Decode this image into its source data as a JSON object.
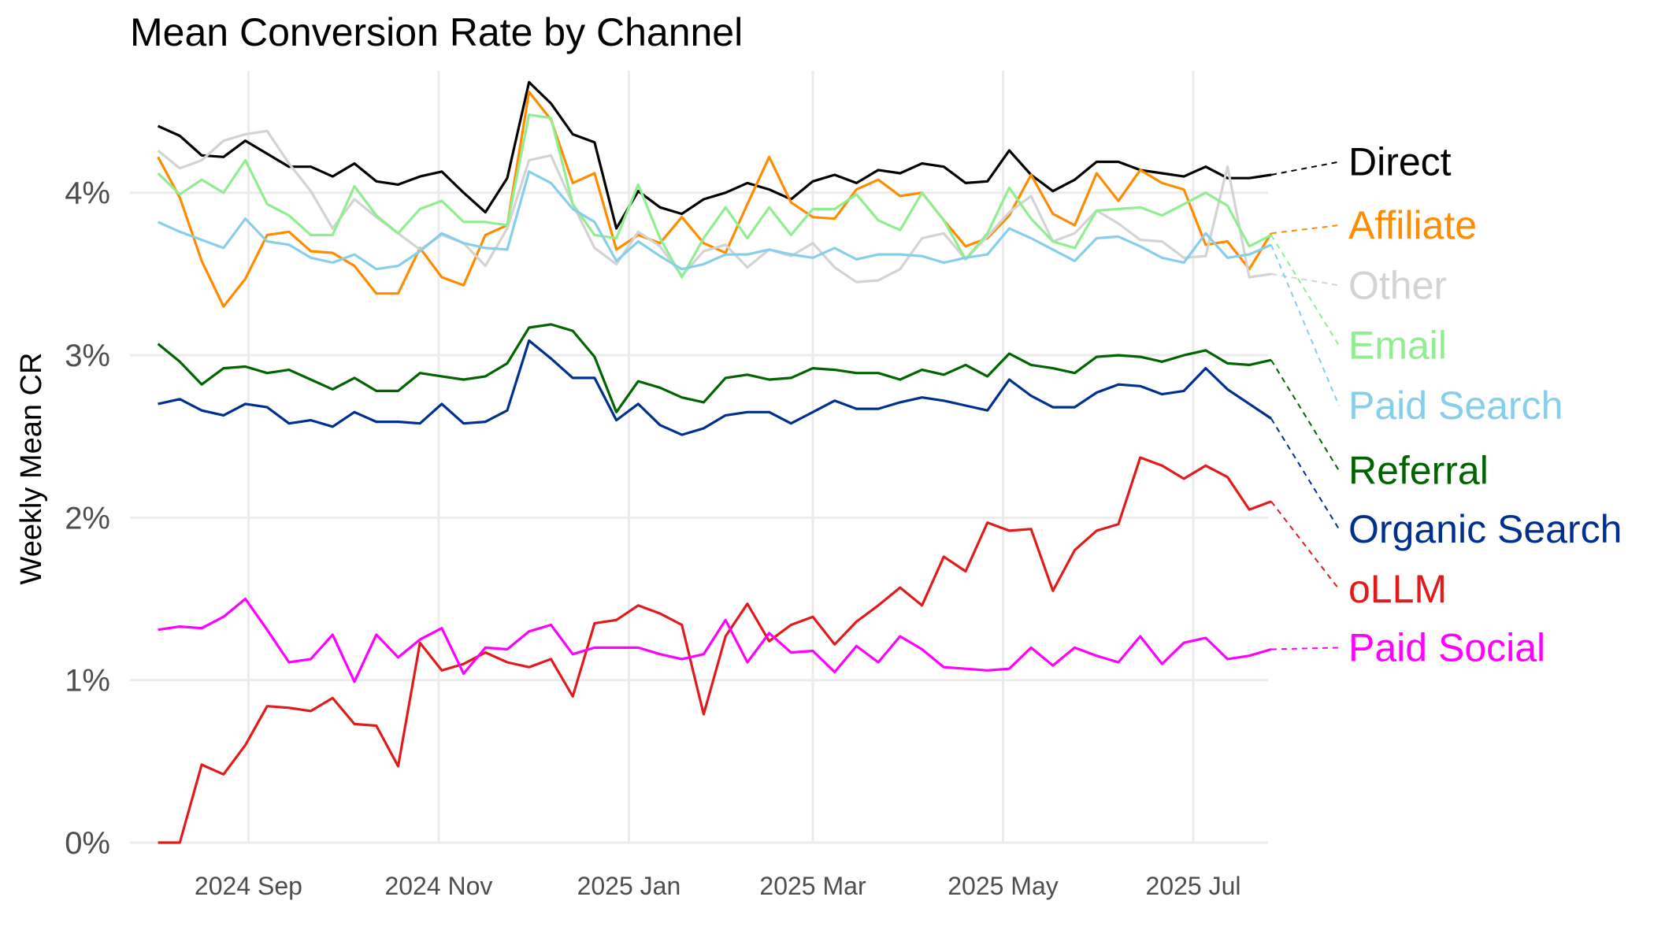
{
  "chart_data": {
    "type": "line",
    "title": "Mean Conversion Rate by Channel",
    "ylabel": "Weekly Mean CR",
    "xlabel": "",
    "ylim": [
      0,
      0.0475
    ],
    "xlim": [
      "2024-07-25",
      "2025-07-25"
    ],
    "yticks": [
      0,
      0.01,
      0.02,
      0.03,
      0.04
    ],
    "ytick_labels": [
      "0%",
      "1%",
      "2%",
      "3%",
      "4%"
    ],
    "xticks": [
      "2024-09-01",
      "2024-11-01",
      "2025-01-01",
      "2025-03-01",
      "2025-05-01",
      "2025-07-01"
    ],
    "xtick_labels": [
      "2024 Sep",
      "2024 Nov",
      "2025 Jan",
      "2025 Mar",
      "2025 May",
      "2025 Jul"
    ],
    "grid": true,
    "legend": "right (direct labels)",
    "x": [
      "2024-08-03",
      "2024-08-10",
      "2024-08-17",
      "2024-08-24",
      "2024-08-31",
      "2024-09-07",
      "2024-09-14",
      "2024-09-21",
      "2024-09-28",
      "2024-10-05",
      "2024-10-12",
      "2024-10-19",
      "2024-10-26",
      "2024-11-02",
      "2024-11-09",
      "2024-11-16",
      "2024-11-23",
      "2024-11-30",
      "2024-12-07",
      "2024-12-14",
      "2024-12-21",
      "2024-12-28",
      "2025-01-04",
      "2025-01-11",
      "2025-01-18",
      "2025-01-25",
      "2025-02-01",
      "2025-02-08",
      "2025-02-15",
      "2025-02-22",
      "2025-03-01",
      "2025-03-08",
      "2025-03-15",
      "2025-03-22",
      "2025-03-29",
      "2025-04-05",
      "2025-04-12",
      "2025-04-19",
      "2025-04-26",
      "2025-05-03",
      "2025-05-10",
      "2025-05-17",
      "2025-05-24",
      "2025-05-31",
      "2025-06-07",
      "2025-06-14",
      "2025-06-21",
      "2025-06-28",
      "2025-07-05",
      "2025-07-12",
      "2025-07-19",
      "2025-07-26"
    ],
    "series": [
      {
        "name": "Direct",
        "color": "#000000",
        "label_value": 0.0419,
        "values": [
          0.0441,
          0.0435,
          0.0423,
          0.0422,
          0.0432,
          0.0424,
          0.0416,
          0.0416,
          0.041,
          0.0418,
          0.0407,
          0.0405,
          0.041,
          0.0413,
          0.04,
          0.0388,
          0.0409,
          0.0468,
          0.0455,
          0.0436,
          0.0431,
          0.0378,
          0.0401,
          0.0391,
          0.0387,
          0.0396,
          0.04,
          0.0406,
          0.0402,
          0.0396,
          0.0407,
          0.0411,
          0.0406,
          0.0414,
          0.0412,
          0.0418,
          0.0416,
          0.0406,
          0.0407,
          0.0426,
          0.0411,
          0.0401,
          0.0408,
          0.0419,
          0.0419,
          0.0414,
          0.0412,
          0.041,
          0.0416,
          0.0409,
          0.0409,
          0.0411
        ]
      },
      {
        "name": "Affiliate",
        "color": "#ff8c00",
        "label_value": 0.038,
        "values": [
          0.0422,
          0.0397,
          0.0358,
          0.033,
          0.0347,
          0.0374,
          0.0376,
          0.0364,
          0.0363,
          0.0355,
          0.0338,
          0.0338,
          0.0366,
          0.0348,
          0.0343,
          0.0374,
          0.038,
          0.0462,
          0.0445,
          0.0406,
          0.0412,
          0.0365,
          0.0374,
          0.0369,
          0.0385,
          0.0369,
          0.0363,
          0.0393,
          0.0422,
          0.0394,
          0.0385,
          0.0384,
          0.0402,
          0.0408,
          0.0398,
          0.04,
          0.0383,
          0.0367,
          0.0372,
          0.0386,
          0.0411,
          0.0387,
          0.038,
          0.0412,
          0.0395,
          0.0414,
          0.0406,
          0.0402,
          0.0368,
          0.037,
          0.0353,
          0.0375
        ]
      },
      {
        "name": "Other",
        "color": "#d3d3d3",
        "label_value": 0.0343,
        "values": [
          0.0426,
          0.0415,
          0.042,
          0.0432,
          0.0436,
          0.0438,
          0.0418,
          0.0401,
          0.0378,
          0.0396,
          0.0385,
          0.0375,
          0.0365,
          0.0374,
          0.0369,
          0.0355,
          0.0378,
          0.042,
          0.0423,
          0.0393,
          0.0366,
          0.0356,
          0.0376,
          0.0367,
          0.0349,
          0.0364,
          0.0368,
          0.0354,
          0.0365,
          0.0361,
          0.0369,
          0.0354,
          0.0345,
          0.0346,
          0.0353,
          0.0372,
          0.0375,
          0.0359,
          0.0373,
          0.0388,
          0.0398,
          0.037,
          0.0375,
          0.0389,
          0.0381,
          0.0371,
          0.037,
          0.036,
          0.0361,
          0.0416,
          0.0348,
          0.035
        ]
      },
      {
        "name": "Email",
        "color": "#90ee90",
        "label_value": 0.0306,
        "values": [
          0.0412,
          0.0399,
          0.0408,
          0.04,
          0.042,
          0.0393,
          0.0386,
          0.0374,
          0.0374,
          0.0404,
          0.0386,
          0.0375,
          0.039,
          0.0395,
          0.0382,
          0.0382,
          0.038,
          0.0448,
          0.0446,
          0.0393,
          0.0374,
          0.0372,
          0.0405,
          0.0372,
          0.0348,
          0.0372,
          0.0391,
          0.0372,
          0.0391,
          0.0374,
          0.039,
          0.039,
          0.0399,
          0.0383,
          0.0377,
          0.04,
          0.0383,
          0.0359,
          0.0375,
          0.0403,
          0.0384,
          0.037,
          0.0366,
          0.0389,
          0.039,
          0.0391,
          0.0386,
          0.0393,
          0.04,
          0.0392,
          0.0367,
          0.0374
        ]
      },
      {
        "name": "Paid Search",
        "color": "#87ceeb",
        "label_value": 0.0269,
        "values": [
          0.0382,
          0.0376,
          0.0371,
          0.0366,
          0.0384,
          0.037,
          0.0368,
          0.036,
          0.0357,
          0.0362,
          0.0353,
          0.0355,
          0.0364,
          0.0375,
          0.0369,
          0.0366,
          0.0365,
          0.0413,
          0.0406,
          0.039,
          0.0382,
          0.0358,
          0.037,
          0.0361,
          0.0353,
          0.0356,
          0.0362,
          0.0362,
          0.0365,
          0.0362,
          0.036,
          0.0366,
          0.0359,
          0.0362,
          0.0362,
          0.0361,
          0.0357,
          0.036,
          0.0362,
          0.0378,
          0.0372,
          0.0365,
          0.0358,
          0.0372,
          0.0373,
          0.0367,
          0.036,
          0.0357,
          0.0375,
          0.036,
          0.0362,
          0.0368
        ]
      },
      {
        "name": "Referral",
        "color": "#006400",
        "label_value": 0.0229,
        "values": [
          0.0307,
          0.0296,
          0.0282,
          0.0292,
          0.0293,
          0.0289,
          0.0291,
          0.0285,
          0.0279,
          0.0286,
          0.0278,
          0.0278,
          0.0289,
          0.0287,
          0.0285,
          0.0287,
          0.0295,
          0.0317,
          0.0319,
          0.0315,
          0.0299,
          0.0265,
          0.0284,
          0.028,
          0.0274,
          0.0271,
          0.0286,
          0.0288,
          0.0285,
          0.0286,
          0.0292,
          0.0291,
          0.0289,
          0.0289,
          0.0285,
          0.0291,
          0.0288,
          0.0294,
          0.0287,
          0.0301,
          0.0294,
          0.0292,
          0.0289,
          0.0299,
          0.03,
          0.0299,
          0.0296,
          0.03,
          0.0303,
          0.0295,
          0.0294,
          0.0297
        ]
      },
      {
        "name": "Organic Search",
        "color": "#00308f",
        "label_value": 0.0193,
        "values": [
          0.027,
          0.0273,
          0.0266,
          0.0263,
          0.027,
          0.0268,
          0.0258,
          0.026,
          0.0256,
          0.0265,
          0.0259,
          0.0259,
          0.0258,
          0.027,
          0.0258,
          0.0259,
          0.0266,
          0.0309,
          0.0298,
          0.0286,
          0.0286,
          0.026,
          0.027,
          0.0257,
          0.0251,
          0.0255,
          0.0263,
          0.0265,
          0.0265,
          0.0258,
          0.0265,
          0.0272,
          0.0267,
          0.0267,
          0.0271,
          0.0274,
          0.0272,
          0.0269,
          0.0266,
          0.0285,
          0.0275,
          0.0268,
          0.0268,
          0.0277,
          0.0282,
          0.0281,
          0.0276,
          0.0278,
          0.0292,
          0.0279,
          0.027,
          0.0261
        ]
      },
      {
        "name": "oLLM",
        "color": "#e31a1c",
        "label_value": 0.0156,
        "values": [
          0,
          0,
          0.0048,
          0.0042,
          0.006,
          0.0084,
          0.0083,
          0.0081,
          0.0089,
          0.0073,
          0.0072,
          0.0047,
          0.0123,
          0.0106,
          0.011,
          0.0117,
          0.0111,
          0.0108,
          0.0113,
          0.009,
          0.0135,
          0.0137,
          0.0146,
          0.0141,
          0.0134,
          0.0079,
          0.0127,
          0.0147,
          0.0124,
          0.0134,
          0.0139,
          0.0122,
          0.0136,
          0.0146,
          0.0157,
          0.0146,
          0.0176,
          0.0167,
          0.0197,
          0.0192,
          0.0193,
          0.0155,
          0.018,
          0.0192,
          0.0196,
          0.0237,
          0.0232,
          0.0224,
          0.0232,
          0.0225,
          0.0205,
          0.021
        ]
      },
      {
        "name": "Paid Social",
        "color": "#ff00ff",
        "label_value": 0.012,
        "values": [
          0.0131,
          0.0133,
          0.0132,
          0.0139,
          0.015,
          0.0131,
          0.0111,
          0.0113,
          0.0128,
          0.0099,
          0.0128,
          0.0114,
          0.0125,
          0.0132,
          0.0104,
          0.012,
          0.0119,
          0.013,
          0.0134,
          0.0116,
          0.012,
          0.012,
          0.012,
          0.0116,
          0.0113,
          0.0116,
          0.0137,
          0.0111,
          0.0129,
          0.0117,
          0.0118,
          0.0105,
          0.0121,
          0.0111,
          0.0127,
          0.0119,
          0.0108,
          0.0107,
          0.0106,
          0.0107,
          0.012,
          0.0109,
          0.012,
          0.0115,
          0.0111,
          0.0127,
          0.011,
          0.0123,
          0.0126,
          0.0113,
          0.0115,
          0.0119
        ]
      }
    ]
  }
}
